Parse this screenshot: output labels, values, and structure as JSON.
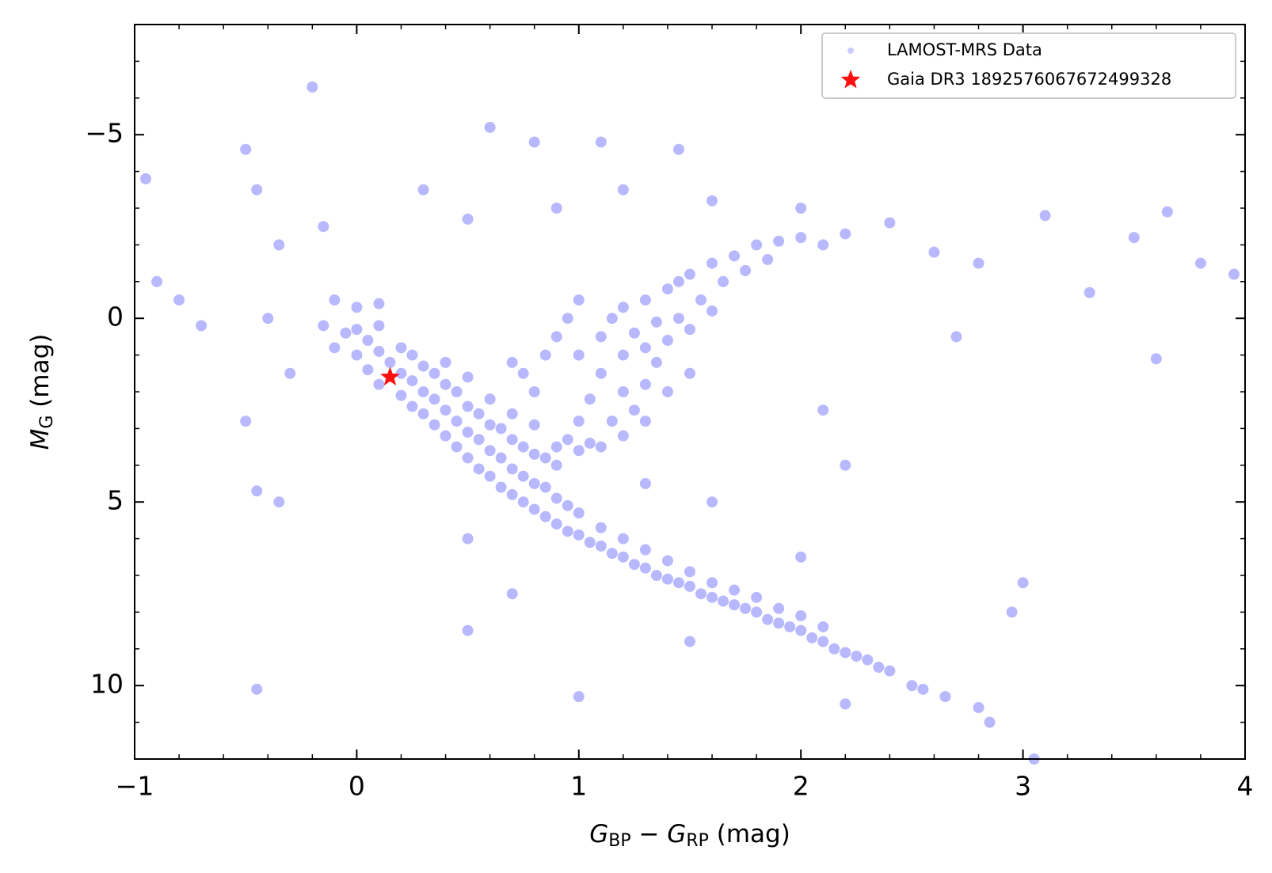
{
  "chart_data": {
    "type": "scatter",
    "xlabel": [
      "G",
      "BP",
      " − ",
      "G",
      "RP",
      " (mag)"
    ],
    "ylabel": [
      "M",
      "G",
      " (mag)"
    ],
    "xlim": [
      -1,
      4
    ],
    "ylim": [
      12,
      -8
    ],
    "xticks": [
      {
        "value": -1,
        "label": "−1"
      },
      0,
      1,
      2,
      3,
      4
    ],
    "yticks": [
      {
        "value": -5,
        "label": "−5"
      },
      0,
      5,
      10
    ],
    "xminorticks": [
      -0.8,
      -0.6,
      -0.4,
      -0.2,
      0.2,
      0.4,
      0.6,
      0.8,
      1.2,
      1.4,
      1.6,
      1.8,
      2.2,
      2.4,
      2.6,
      2.8,
      3.2,
      3.4,
      3.6,
      3.8
    ],
    "yminorticks": [
      -8,
      -7,
      -6,
      -4,
      -3,
      -2,
      -1,
      1,
      2,
      3,
      4,
      6,
      7,
      8,
      9,
      11,
      12
    ],
    "legend": "upper right",
    "grid": false,
    "series": [
      {
        "name": "LAMOST-MRS Data",
        "color": "#0000ff",
        "marker": "dot",
        "x": [
          -0.15,
          -0.1,
          -0.05,
          0,
          0,
          0.05,
          0.05,
          0.1,
          0.1,
          0.1,
          0.15,
          0.2,
          0.2,
          0.2,
          0.25,
          0.25,
          0.25,
          0.3,
          0.3,
          0.3,
          0.35,
          0.35,
          0.35,
          0.4,
          0.4,
          0.4,
          0.4,
          0.45,
          0.45,
          0.45,
          0.5,
          0.5,
          0.5,
          0.5,
          0.55,
          0.55,
          0.55,
          0.6,
          0.6,
          0.6,
          0.6,
          0.65,
          0.65,
          0.65,
          0.7,
          0.7,
          0.7,
          0.7,
          0.75,
          0.75,
          0.75,
          0.8,
          0.8,
          0.8,
          0.8,
          0.85,
          0.85,
          0.85,
          0.9,
          0.9,
          0.9,
          0.95,
          0.95,
          1.0,
          1.0,
          1.05,
          1.1,
          1.1,
          1.15,
          1.2,
          1.2,
          1.25,
          1.3,
          1.3,
          1.35,
          1.4,
          1.4,
          1.45,
          1.5,
          1.5,
          1.55,
          1.6,
          1.6,
          1.65,
          1.7,
          1.7,
          1.75,
          1.8,
          1.8,
          1.85,
          1.9,
          1.9,
          1.95,
          2.0,
          2.0,
          2.05,
          2.1,
          2.1,
          2.15,
          2.2,
          2.25,
          2.3,
          2.35,
          2.4,
          2.5,
          2.55,
          2.65,
          2.8,
          -0.1,
          0,
          0.1,
          0.9,
          0.95,
          1.0,
          1.0,
          1.05,
          1.05,
          1.1,
          1.1,
          1.1,
          1.15,
          1.15,
          1.2,
          1.2,
          1.2,
          1.2,
          1.25,
          1.25,
          1.3,
          1.3,
          1.3,
          1.35,
          1.35,
          1.4,
          1.4,
          1.45,
          1.45,
          1.5,
          1.5,
          1.55,
          1.6,
          1.6,
          1.65,
          1.7,
          1.75,
          1.8,
          1.85,
          1.9,
          2.0,
          2.1,
          2.2,
          0.9,
          0.95,
          1.0,
          0.85,
          1.0,
          1.3,
          1.4,
          1.5,
          0.8,
          0.75,
          0.7,
          -0.95,
          -0.9,
          -0.8,
          -0.7,
          -0.5,
          -0.45,
          -0.4,
          -0.35,
          -0.3,
          -0.2,
          -0.15,
          -0.5,
          -0.45,
          -0.35,
          -0.45,
          0.6,
          0.8,
          1.1,
          1.45,
          0.3,
          0.5,
          0.9,
          1.2,
          1.6,
          2.0,
          2.4,
          2.6,
          2.8,
          3.1,
          3.3,
          3.5,
          3.65,
          3.8,
          3.95,
          3.6,
          2.7,
          2.1,
          2.2,
          2.0,
          1.6,
          0.5,
          0.7,
          0.5,
          1.0,
          1.5,
          3.0,
          2.95,
          3.05,
          2.2,
          2.85,
          1.3
        ],
        "y": [
          0.2,
          0.8,
          0.4,
          1.0,
          0.3,
          1.4,
          0.6,
          1.8,
          0.9,
          0.2,
          1.2,
          2.1,
          1.5,
          0.8,
          2.4,
          1.7,
          1.0,
          2.6,
          2.0,
          1.3,
          2.9,
          2.2,
          1.5,
          3.2,
          2.5,
          1.8,
          1.2,
          3.5,
          2.8,
          2.0,
          3.8,
          3.1,
          2.4,
          1.6,
          4.1,
          3.3,
          2.6,
          4.3,
          3.6,
          2.9,
          2.2,
          4.6,
          3.8,
          3.0,
          4.8,
          4.1,
          3.3,
          2.6,
          5.0,
          4.3,
          3.5,
          5.2,
          4.5,
          3.7,
          2.9,
          5.4,
          4.6,
          3.8,
          5.6,
          4.9,
          4.0,
          5.8,
          5.1,
          5.9,
          5.3,
          6.1,
          6.2,
          5.7,
          6.4,
          6.5,
          6.0,
          6.7,
          6.8,
          6.3,
          7.0,
          7.1,
          6.6,
          7.2,
          7.3,
          6.9,
          7.5,
          7.6,
          7.2,
          7.7,
          7.8,
          7.4,
          7.9,
          8.0,
          7.6,
          8.2,
          8.3,
          7.9,
          8.4,
          8.5,
          8.1,
          8.7,
          8.8,
          8.4,
          9.0,
          9.1,
          9.2,
          9.3,
          9.5,
          9.6,
          10.0,
          10.1,
          10.3,
          10.6,
          -0.5,
          -0.3,
          -0.4,
          3.5,
          3.3,
          3.6,
          2.8,
          3.4,
          2.2,
          3.5,
          1.5,
          0.5,
          2.8,
          0.0,
          3.2,
          2.0,
          1.0,
          -0.3,
          2.5,
          0.4,
          1.8,
          0.8,
          -0.5,
          1.2,
          0.1,
          0.6,
          -0.8,
          0.0,
          -1.0,
          0.3,
          -1.2,
          -0.5,
          -1.5,
          -0.2,
          -1.0,
          -1.7,
          -1.3,
          -2.0,
          -1.6,
          -2.1,
          -2.2,
          -2.0,
          -2.3,
          0.5,
          0.0,
          -0.5,
          1.0,
          1.0,
          2.8,
          2.0,
          1.5,
          2.0,
          1.5,
          1.2,
          -3.8,
          -1.0,
          -0.5,
          0.2,
          -4.6,
          -3.5,
          0.0,
          -2.0,
          1.5,
          -6.3,
          -2.5,
          2.8,
          4.7,
          5.0,
          10.1,
          -5.2,
          -4.8,
          -4.8,
          -4.6,
          -3.5,
          -2.7,
          -3.0,
          -3.5,
          -3.2,
          -3.0,
          -2.6,
          -1.8,
          -1.5,
          -2.8,
          -0.7,
          -2.2,
          -2.9,
          -1.5,
          -1.2,
          1.1,
          0.5,
          2.5,
          4.0,
          6.5,
          5.0,
          6.0,
          7.5,
          8.5,
          10.3,
          8.8,
          7.2,
          8.0,
          12.0,
          10.5,
          11.0,
          4.5
        ]
      },
      {
        "name": "Gaia DR3 1892576067672499328",
        "color": "#ff1010",
        "marker": "star",
        "x": [
          0.15
        ],
        "y": [
          1.6
        ]
      }
    ]
  }
}
